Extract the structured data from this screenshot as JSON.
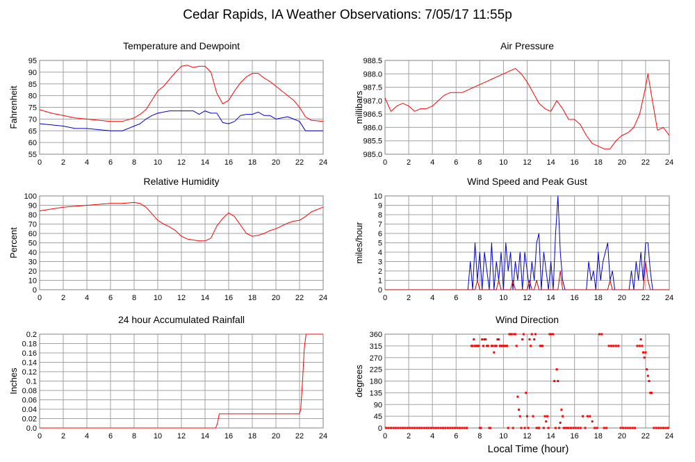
{
  "title": "Cedar Rapids, IA Weather Observations: 7/05/17 11:55p",
  "xlabel": "Local Time (hour)",
  "colors": {
    "temperature": "#ff0000",
    "dewpoint": "#0000cc",
    "gust": "#cc0000",
    "grid": "#a0a0a0"
  },
  "chart_data": [
    {
      "type": "line",
      "title": "Temperature and Dewpoint",
      "ylabel": "Fahrenheit",
      "xlim": [
        0,
        24
      ],
      "ylim": [
        55,
        95
      ],
      "xticks": [
        "0",
        "2",
        "4",
        "6",
        "8",
        "10",
        "12",
        "14",
        "16",
        "18",
        "20",
        "22",
        "24"
      ],
      "yticks": [
        "55",
        "60",
        "65",
        "70",
        "75",
        "80",
        "85",
        "90",
        "95"
      ],
      "grid": true,
      "series": [
        {
          "color": "#ff0000",
          "x": [
            0,
            1,
            2,
            3,
            4,
            5,
            6,
            7,
            8,
            8.5,
            9,
            9.5,
            10,
            10.5,
            11,
            11.5,
            12,
            12.5,
            13,
            13.5,
            14,
            14.5,
            15,
            15.5,
            16,
            16.5,
            17,
            17.5,
            18,
            18.5,
            19,
            19.5,
            20,
            20.5,
            21,
            21.5,
            22,
            22.5,
            23,
            24
          ],
          "y": [
            74,
            72.5,
            71.5,
            70.5,
            70,
            69.5,
            69,
            69,
            70.5,
            72,
            74,
            78,
            82,
            84,
            87,
            90,
            92.5,
            93,
            92,
            92.5,
            92.5,
            90,
            81,
            76.5,
            78,
            82,
            85.5,
            88,
            89.5,
            89.5,
            87.5,
            86,
            84,
            82,
            80,
            78,
            75,
            71,
            69.5,
            69
          ]
        },
        {
          "color": "#0000cc",
          "x": [
            0,
            1,
            2,
            3,
            4,
            5,
            6,
            7,
            8,
            8.5,
            9,
            9.5,
            10,
            11,
            12,
            13,
            13.5,
            14,
            14.5,
            15,
            15.5,
            16,
            16.5,
            17,
            17.5,
            18,
            18.5,
            19,
            19.5,
            20,
            21,
            21.5,
            22,
            22.5,
            23,
            24
          ],
          "y": [
            68,
            67.5,
            67,
            66,
            66,
            65.5,
            65,
            65,
            67,
            68,
            70,
            71.5,
            72.5,
            73.5,
            73.5,
            73.5,
            72,
            73.5,
            72.5,
            72.5,
            68.5,
            68,
            69,
            71.5,
            72,
            72,
            73,
            71.5,
            71.5,
            70,
            71,
            70,
            69,
            65,
            65,
            65
          ]
        }
      ]
    },
    {
      "type": "line",
      "title": "Air Pressure",
      "ylabel": "millibars",
      "xlim": [
        0,
        24
      ],
      "ylim": [
        985.0,
        988.5
      ],
      "xticks": [
        "0",
        "2",
        "4",
        "6",
        "8",
        "10",
        "12",
        "14",
        "16",
        "18",
        "20",
        "22",
        "24"
      ],
      "yticks": [
        "985.0",
        "985.5",
        "986.0",
        "986.5",
        "987.0",
        "987.5",
        "988.0",
        "988.5"
      ],
      "grid": true,
      "series": [
        {
          "color": "#ff0000",
          "x": [
            0,
            0.5,
            1,
            1.5,
            2,
            2.5,
            3,
            3.5,
            4,
            4.5,
            5,
            5.5,
            6,
            6.5,
            7,
            7.5,
            8,
            8.5,
            9,
            9.5,
            10,
            10.5,
            11,
            11.5,
            12,
            12.5,
            13,
            13.5,
            14,
            14.5,
            15,
            15.5,
            16,
            16.5,
            17,
            17.5,
            18,
            18.5,
            19,
            19.5,
            20,
            20.5,
            21,
            21.5,
            22,
            22.2,
            22.5,
            23,
            23.5,
            24
          ],
          "y": [
            987.1,
            986.6,
            986.8,
            986.9,
            986.8,
            986.6,
            986.7,
            986.7,
            986.8,
            987.0,
            987.2,
            987.3,
            987.3,
            987.3,
            987.4,
            987.5,
            987.6,
            987.7,
            987.8,
            987.9,
            988.0,
            988.1,
            988.2,
            988.0,
            987.7,
            987.3,
            986.9,
            986.7,
            986.6,
            987.0,
            986.7,
            986.3,
            986.3,
            986.1,
            985.7,
            985.4,
            985.3,
            985.2,
            985.2,
            985.5,
            985.7,
            985.8,
            986.0,
            986.5,
            987.5,
            988.0,
            987.2,
            985.9,
            986.0,
            985.7
          ]
        }
      ]
    },
    {
      "type": "line",
      "title": "Relative Humidity",
      "ylabel": "Percent",
      "xlim": [
        0,
        24
      ],
      "ylim": [
        0,
        100
      ],
      "xticks": [
        "0",
        "2",
        "4",
        "6",
        "8",
        "10",
        "12",
        "14",
        "16",
        "18",
        "20",
        "22",
        "24"
      ],
      "yticks": [
        "0",
        "10",
        "20",
        "30",
        "40",
        "50",
        "60",
        "70",
        "80",
        "90",
        "100"
      ],
      "grid": true,
      "series": [
        {
          "color": "#ff0000",
          "x": [
            0,
            1,
            2,
            3,
            4,
            5,
            6,
            7,
            8,
            8.5,
            9,
            9.5,
            10,
            10.5,
            11,
            11.5,
            12,
            12.5,
            13,
            13.5,
            14,
            14.5,
            15,
            15.5,
            16,
            16.5,
            17,
            17.5,
            18,
            18.5,
            19,
            19.5,
            20,
            20.5,
            21,
            21.5,
            22,
            22.5,
            23,
            24
          ],
          "y": [
            84,
            86,
            88,
            89,
            90,
            91,
            92,
            92,
            93,
            92,
            88,
            81,
            74,
            70,
            67,
            63,
            57,
            54,
            53,
            52,
            52,
            55,
            68,
            76,
            82,
            78,
            69,
            60,
            57,
            58,
            60,
            63,
            65,
            68,
            71,
            73,
            74,
            78,
            83,
            88
          ]
        }
      ]
    },
    {
      "type": "line",
      "title": "Wind Speed and Peak Gust",
      "ylabel": "miles/hour",
      "xlim": [
        0,
        24
      ],
      "ylim": [
        0,
        10
      ],
      "xticks": [
        "0",
        "2",
        "4",
        "6",
        "8",
        "10",
        "12",
        "14",
        "16",
        "18",
        "20",
        "22",
        "24"
      ],
      "yticks": [
        "0",
        "1",
        "2",
        "3",
        "4",
        "5",
        "6",
        "7",
        "8",
        "9",
        "10"
      ],
      "grid": true,
      "series": [
        {
          "color": "#0000cc",
          "x": [
            0,
            7,
            7.2,
            7.4,
            7.6,
            7.8,
            8,
            8.2,
            8.4,
            8.6,
            8.8,
            9,
            9.2,
            9.4,
            9.6,
            9.8,
            10,
            10.2,
            10.4,
            10.6,
            10.8,
            11,
            11.2,
            11.4,
            11.6,
            11.8,
            12,
            12.2,
            12.4,
            12.6,
            12.8,
            13,
            13.2,
            13.4,
            13.6,
            13.8,
            14,
            14.2,
            14.4,
            14.6,
            14.8,
            15,
            15.2,
            15.4,
            16,
            17,
            17.2,
            17.4,
            17.6,
            17.8,
            18,
            18.2,
            18.4,
            18.6,
            18.8,
            19,
            19.2,
            19.4,
            20,
            20.6,
            20.8,
            21,
            21.2,
            21.4,
            21.6,
            21.8,
            22,
            22.2,
            22.4,
            22.6,
            22.8,
            24
          ],
          "y": [
            0,
            0,
            3,
            0,
            5,
            1,
            4,
            0,
            4,
            2,
            0,
            5,
            0,
            3,
            1,
            4,
            0,
            5,
            2,
            4,
            0,
            3,
            1,
            4,
            0,
            4,
            2,
            0,
            3,
            1,
            5,
            6,
            0,
            4,
            2,
            0,
            3,
            0,
            6,
            10,
            4,
            1,
            0,
            0,
            0,
            0,
            3,
            1,
            2,
            0,
            4,
            1,
            3,
            4,
            5,
            1,
            2,
            0,
            0,
            0,
            2,
            0,
            3,
            1,
            4,
            1,
            5,
            5,
            2,
            0,
            0,
            0
          ]
        },
        {
          "color": "#cc0000",
          "x": [
            0,
            7.6,
            7.8,
            8,
            9.4,
            9.6,
            9.8,
            10.6,
            10.8,
            11,
            12,
            12.2,
            12.4,
            12.6,
            12.8,
            13,
            14.6,
            14.8,
            15,
            18.8,
            19,
            19.2,
            21.8,
            22,
            22.2,
            22.4,
            24
          ],
          "y": [
            0,
            0,
            1,
            0,
            0,
            1,
            0,
            0,
            1,
            0,
            0,
            1,
            0,
            0,
            1,
            0,
            0,
            2,
            0,
            0,
            1,
            0,
            0,
            3,
            1,
            0,
            0
          ]
        }
      ]
    },
    {
      "type": "line",
      "title": "24 hour Accumulated Rainfall",
      "ylabel": "Inches",
      "xlim": [
        0,
        24
      ],
      "ylim": [
        0,
        0.2
      ],
      "xticks": [
        "0",
        "2",
        "4",
        "6",
        "8",
        "10",
        "12",
        "14",
        "16",
        "18",
        "20",
        "22",
        "24"
      ],
      "yticks": [
        "0.0",
        "0.02",
        "0.04",
        "0.06",
        "0.08",
        "0.1",
        "0.12",
        "0.14",
        "0.16",
        "0.18",
        "0.2"
      ],
      "grid": true,
      "series": [
        {
          "color": "#ff0000",
          "x": [
            0,
            14.9,
            15.05,
            15.2,
            22.0,
            22.1,
            22.25,
            22.4,
            22.55,
            24
          ],
          "y": [
            0,
            0,
            0.01,
            0.03,
            0.03,
            0.04,
            0.1,
            0.17,
            0.2,
            0.2
          ]
        }
      ]
    },
    {
      "type": "scatter",
      "title": "Wind Direction",
      "ylabel": "degrees",
      "xlim": [
        0,
        24
      ],
      "ylim": [
        0,
        360
      ],
      "xticks": [
        "0",
        "2",
        "4",
        "6",
        "8",
        "10",
        "12",
        "14",
        "16",
        "18",
        "20",
        "22",
        "24"
      ],
      "yticks": [
        "0",
        "45",
        "90",
        "135",
        "180",
        "225",
        "270",
        "315",
        "360"
      ],
      "grid": true,
      "series": [
        {
          "color": "#ff0000",
          "x": [
            0.1,
            0.3,
            0.5,
            0.7,
            0.9,
            1.1,
            1.3,
            1.5,
            1.7,
            1.9,
            2.1,
            2.3,
            2.5,
            2.7,
            2.9,
            3.1,
            3.3,
            3.5,
            3.7,
            3.9,
            4.1,
            4.3,
            4.5,
            4.7,
            4.9,
            5.1,
            5.3,
            5.5,
            5.7,
            5.9,
            6.1,
            6.3,
            6.5,
            6.7,
            6.9,
            7.3,
            7.4,
            7.5,
            7.6,
            7.7,
            7.8,
            7.9,
            8.0,
            8.1,
            8.2,
            8.3,
            8.4,
            8.5,
            8.6,
            8.7,
            8.8,
            8.9,
            9.0,
            9.1,
            9.2,
            9.3,
            9.4,
            9.5,
            9.6,
            9.7,
            9.8,
            9.9,
            10.0,
            10.1,
            10.2,
            10.3,
            10.4,
            10.5,
            10.6,
            10.7,
            10.8,
            10.9,
            11.0,
            11.1,
            11.2,
            11.3,
            11.4,
            11.5,
            11.6,
            11.7,
            11.8,
            11.9,
            12.0,
            12.1,
            12.2,
            12.3,
            12.4,
            12.5,
            12.6,
            12.7,
            12.8,
            12.9,
            13.0,
            13.1,
            13.2,
            13.3,
            13.4,
            13.5,
            13.6,
            13.7,
            13.8,
            13.9,
            14.0,
            14.1,
            14.2,
            14.3,
            14.4,
            14.5,
            14.6,
            14.7,
            14.8,
            14.9,
            15.0,
            15.1,
            15.2,
            15.3,
            15.4,
            15.5,
            15.7,
            15.9,
            16.1,
            16.3,
            16.5,
            16.7,
            16.9,
            17.1,
            17.3,
            17.5,
            17.7,
            17.9,
            18.1,
            18.3,
            18.5,
            18.7,
            18.9,
            19.1,
            19.3,
            19.5,
            19.7,
            19.9,
            20.1,
            20.3,
            20.5,
            20.7,
            20.9,
            21.1,
            21.3,
            21.5,
            21.6,
            21.7,
            21.8,
            21.9,
            22.0,
            22.1,
            22.2,
            22.3,
            22.4,
            22.5,
            22.7,
            22.9,
            23.1,
            23.3,
            23.5,
            23.7,
            23.9
          ],
          "y": [
            0,
            0,
            0,
            0,
            0,
            0,
            0,
            0,
            0,
            0,
            0,
            0,
            0,
            0,
            0,
            0,
            0,
            0,
            0,
            0,
            0,
            0,
            0,
            0,
            0,
            0,
            0,
            0,
            0,
            0,
            0,
            0,
            0,
            0,
            0,
            315,
            315,
            340,
            315,
            315,
            315,
            315,
            0,
            0,
            340,
            315,
            340,
            340,
            315,
            315,
            0,
            0,
            315,
            315,
            290,
            315,
            315,
            340,
            340,
            315,
            315,
            315,
            315,
            315,
            315,
            315,
            0,
            360,
            360,
            360,
            0,
            360,
            360,
            315,
            120,
            70,
            45,
            0,
            340,
            360,
            0,
            135,
            45,
            0,
            340,
            315,
            360,
            45,
            340,
            360,
            0,
            0,
            0,
            315,
            315,
            315,
            0,
            45,
            25,
            45,
            0,
            360,
            360,
            360,
            360,
            180,
            0,
            225,
            180,
            0,
            20,
            70,
            45,
            0,
            0,
            0,
            0,
            0,
            0,
            0,
            0,
            0,
            0,
            45,
            0,
            45,
            45,
            25,
            0,
            0,
            360,
            360,
            0,
            0,
            315,
            315,
            315,
            315,
            315,
            0,
            0,
            0,
            0,
            0,
            0,
            0,
            315,
            315,
            340,
            315,
            290,
            270,
            290,
            225,
            200,
            180,
            135,
            135,
            0,
            0,
            0,
            0,
            0,
            0,
            0
          ]
        }
      ]
    }
  ]
}
